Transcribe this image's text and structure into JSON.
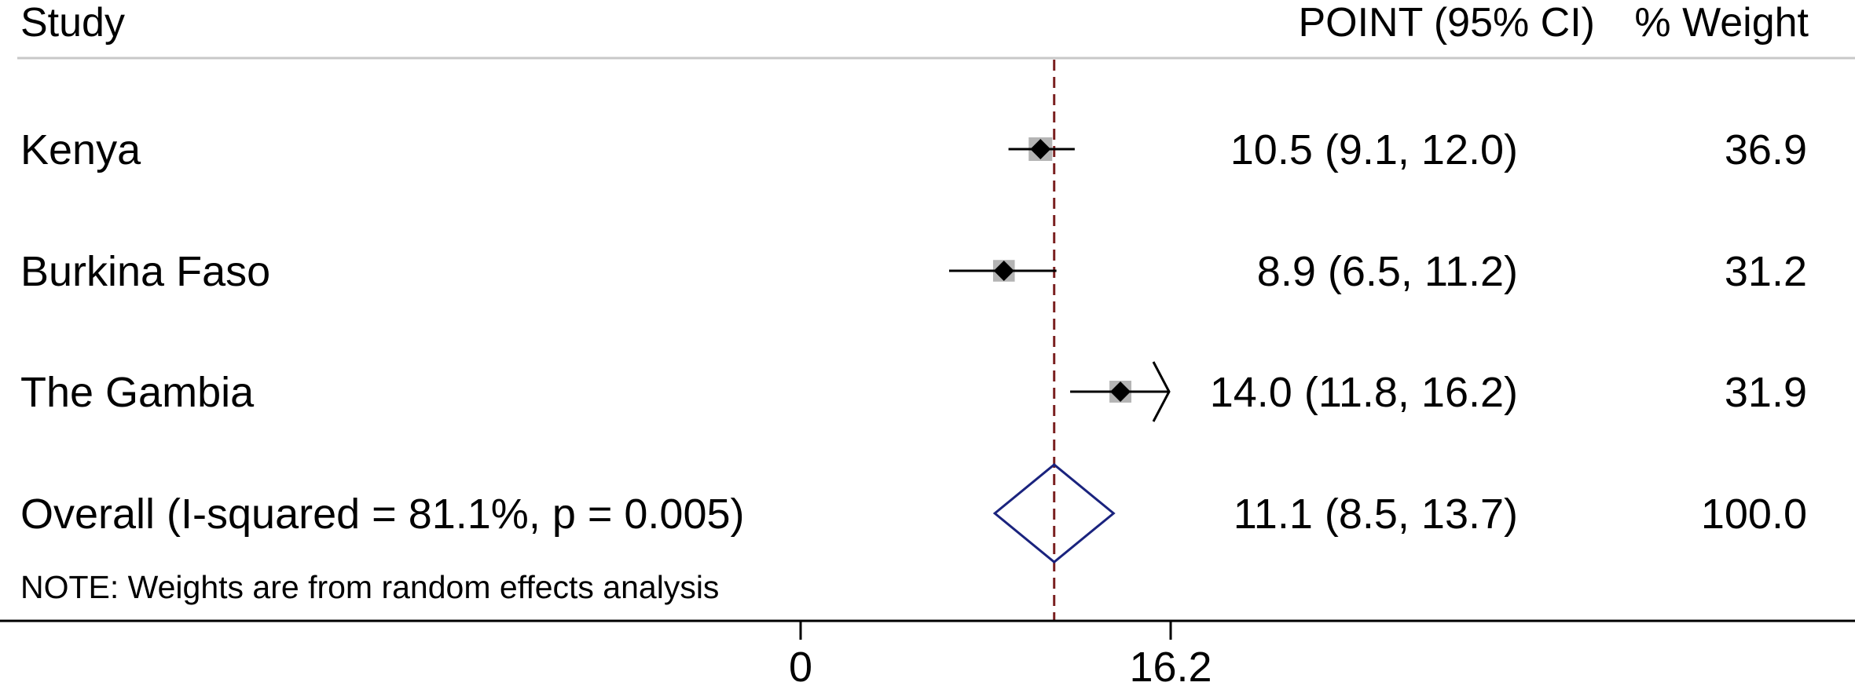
{
  "header": {
    "study_label": "Study",
    "estimate_label": "POINT (95% CI)",
    "weight_label": "% Weight"
  },
  "note": "NOTE: Weights are from random effects analysis",
  "chart_data": {
    "type": "forest",
    "x_axis": {
      "range": [
        0,
        16.2
      ],
      "ticks": [
        0,
        16.2
      ],
      "tick_labels": [
        "0",
        "16.2"
      ]
    },
    "reference_line": 11.1,
    "studies": [
      {
        "label": "Kenya",
        "point": 10.5,
        "lower": 9.1,
        "upper": 12.0,
        "ci_text": "10.5 (9.1, 12.0)",
        "weight": 36.9,
        "weight_text": "36.9"
      },
      {
        "label": "Burkina Faso",
        "point": 8.9,
        "lower": 6.5,
        "upper": 11.2,
        "ci_text": "8.9 (6.5, 11.2)",
        "weight": 31.2,
        "weight_text": "31.2"
      },
      {
        "label": "The Gambia",
        "point": 14.0,
        "lower": 11.8,
        "upper": 16.2,
        "ci_text": "14.0 (11.8, 16.2)",
        "weight": 31.9,
        "weight_text": "31.9",
        "upper_truncated": true
      }
    ],
    "overall": {
      "label": "Overall  (I-squared = 81.1%, p = 0.005)",
      "point": 11.1,
      "lower": 8.5,
      "upper": 13.7,
      "ci_text": "11.1 (8.5, 13.7)",
      "weight": 100.0,
      "weight_text": "100.0"
    },
    "colors": {
      "marker": "#000000",
      "weight_box": "#b4b4b4",
      "reference_line": "#7a1f1f",
      "diamond": "#1a237e",
      "rules": "#c8c8c8"
    }
  }
}
